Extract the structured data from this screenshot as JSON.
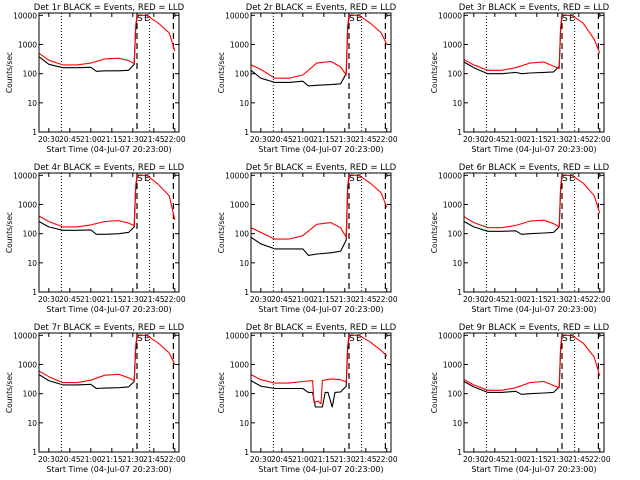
{
  "figure": {
    "colors": {
      "events": "#000000",
      "lld": "#ff0000",
      "axes": "#000000",
      "background": "#ffffff"
    },
    "shared_axes": {
      "ylabel": "Counts/sec",
      "xlabel": "Start Time (04-Jul-07 20:23:00)",
      "y_scale": "log",
      "ylim": [
        1,
        12000
      ],
      "yticks": [
        1,
        10,
        100,
        1000,
        10000
      ],
      "ytick_labels": [
        "1",
        "10",
        "100",
        "1000",
        "10000"
      ],
      "xlim": [
        "20:23",
        "22:03"
      ],
      "xticks": [
        "20:30",
        "20:45",
        "21:00",
        "21:15",
        "21:30",
        "21:45",
        "22:00"
      ],
      "xtick_labels": [
        "20:30",
        "20:45",
        "21:00",
        "21:15",
        "21:30",
        "21:45",
        "22:00"
      ],
      "dotted_lines_at": [
        "20:39",
        "21:42"
      ],
      "dashed_lines_at": [
        "21:33",
        "21:59"
      ],
      "markers": [
        {
          "label": "S",
          "at": "21:35"
        },
        {
          "label": "E",
          "at": "21:40"
        }
      ]
    }
  },
  "chart_data": [
    {
      "type": "line",
      "title": "Det 1r BLACK = Events, RED = LLD",
      "series": [
        {
          "name": "Events",
          "color": "#000000",
          "x": [
            "20:23",
            "20:30",
            "20:40",
            "20:50",
            "21:00",
            "21:04",
            "21:10",
            "21:20",
            "21:27",
            "21:31",
            "21:32",
            "21:33",
            "21:34"
          ],
          "y": [
            380,
            210,
            160,
            160,
            165,
            120,
            125,
            125,
            130,
            210,
            3000,
            10000,
            10000
          ]
        },
        {
          "name": "LLD",
          "color": "#ff0000",
          "x": [
            "20:23",
            "20:30",
            "20:40",
            "20:50",
            "21:00",
            "21:10",
            "21:20",
            "21:27",
            "21:31",
            "21:32",
            "21:33",
            "21:34",
            "21:40",
            "21:48",
            "21:56",
            "22:00"
          ],
          "y": [
            500,
            290,
            200,
            200,
            230,
            320,
            340,
            280,
            220,
            4000,
            10000,
            10000,
            10000,
            5500,
            2500,
            600
          ]
        }
      ]
    },
    {
      "type": "line",
      "title": "Det 2r BLACK = Events, RED = LLD",
      "series": [
        {
          "name": "Events",
          "color": "#000000",
          "x": [
            "20:23",
            "20:30",
            "20:40",
            "20:50",
            "21:00",
            "21:04",
            "21:10",
            "21:20",
            "21:27",
            "21:31",
            "21:32",
            "21:33",
            "21:34"
          ],
          "y": [
            130,
            70,
            50,
            50,
            55,
            38,
            40,
            42,
            45,
            100,
            3000,
            10000,
            10000
          ]
        },
        {
          "name": "LLD",
          "color": "#ff0000",
          "x": [
            "20:23",
            "20:30",
            "20:40",
            "20:50",
            "21:00",
            "21:10",
            "21:20",
            "21:27",
            "21:31",
            "21:32",
            "21:33",
            "21:34",
            "21:40",
            "21:48",
            "21:56",
            "22:00"
          ],
          "y": [
            200,
            140,
            70,
            70,
            90,
            230,
            260,
            170,
            90,
            4000,
            10000,
            10000,
            10000,
            5500,
            2500,
            1000
          ]
        }
      ]
    },
    {
      "type": "line",
      "title": "Det 3r BLACK = Events, RED = LLD",
      "series": [
        {
          "name": "Events",
          "color": "#000000",
          "x": [
            "20:23",
            "20:30",
            "20:40",
            "20:50",
            "21:00",
            "21:04",
            "21:10",
            "21:20",
            "21:27",
            "21:31",
            "21:32",
            "21:33",
            "21:34"
          ],
          "y": [
            250,
            160,
            100,
            100,
            110,
            100,
            105,
            110,
            115,
            180,
            3000,
            10000,
            10000
          ]
        },
        {
          "name": "LLD",
          "color": "#ff0000",
          "x": [
            "20:23",
            "20:30",
            "20:40",
            "20:50",
            "21:00",
            "21:10",
            "21:20",
            "21:27",
            "21:31",
            "21:32",
            "21:33",
            "21:34",
            "21:40",
            "21:48",
            "21:56",
            "22:00"
          ],
          "y": [
            300,
            200,
            130,
            130,
            160,
            230,
            250,
            180,
            150,
            4000,
            10000,
            10000,
            10000,
            5500,
            1500,
            500
          ]
        }
      ]
    },
    {
      "type": "line",
      "title": "Det 4r BLACK = Events, RED = LLD",
      "series": [
        {
          "name": "Events",
          "color": "#000000",
          "x": [
            "20:23",
            "20:30",
            "20:40",
            "20:50",
            "21:00",
            "21:04",
            "21:10",
            "21:20",
            "21:27",
            "21:31",
            "21:32",
            "21:33",
            "21:34"
          ],
          "y": [
            260,
            170,
            130,
            130,
            135,
            95,
            95,
            100,
            110,
            170,
            3000,
            10000,
            10000
          ]
        },
        {
          "name": "LLD",
          "color": "#ff0000",
          "x": [
            "20:23",
            "20:30",
            "20:40",
            "20:50",
            "21:00",
            "21:10",
            "21:20",
            "21:27",
            "21:31",
            "21:32",
            "21:33",
            "21:34",
            "21:40",
            "21:48",
            "21:56",
            "22:00"
          ],
          "y": [
            400,
            260,
            170,
            170,
            200,
            260,
            280,
            230,
            190,
            4000,
            10000,
            10000,
            10000,
            5000,
            2000,
            300
          ]
        }
      ]
    },
    {
      "type": "line",
      "title": "Det 5r BLACK = Events, RED = LLD",
      "series": [
        {
          "name": "Events",
          "color": "#000000",
          "x": [
            "20:23",
            "20:30",
            "20:40",
            "20:50",
            "21:00",
            "21:04",
            "21:10",
            "21:20",
            "21:27",
            "21:31",
            "21:32",
            "21:33",
            "21:34"
          ],
          "y": [
            75,
            45,
            30,
            30,
            30,
            18,
            20,
            22,
            25,
            60,
            3000,
            10000,
            10000
          ]
        },
        {
          "name": "LLD",
          "color": "#ff0000",
          "x": [
            "20:23",
            "20:30",
            "20:40",
            "20:50",
            "21:00",
            "21:10",
            "21:20",
            "21:27",
            "21:31",
            "21:32",
            "21:33",
            "21:34",
            "21:40",
            "21:48",
            "21:56",
            "22:00"
          ],
          "y": [
            160,
            110,
            65,
            65,
            85,
            210,
            240,
            160,
            75,
            4000,
            10000,
            10000,
            10000,
            5500,
            2500,
            800
          ]
        }
      ]
    },
    {
      "type": "line",
      "title": "Det 6r BLACK = Events, RED = LLD",
      "series": [
        {
          "name": "Events",
          "color": "#000000",
          "x": [
            "20:23",
            "20:30",
            "20:40",
            "20:50",
            "21:00",
            "21:04",
            "21:10",
            "21:20",
            "21:27",
            "21:31",
            "21:32",
            "21:33",
            "21:34"
          ],
          "y": [
            260,
            170,
            120,
            120,
            125,
            95,
            100,
            105,
            110,
            170,
            3000,
            10000,
            10000
          ]
        },
        {
          "name": "LLD",
          "color": "#ff0000",
          "x": [
            "20:23",
            "20:30",
            "20:40",
            "20:50",
            "21:00",
            "21:10",
            "21:20",
            "21:27",
            "21:31",
            "21:32",
            "21:33",
            "21:34",
            "21:40",
            "21:48",
            "21:56",
            "22:00"
          ],
          "y": [
            380,
            240,
            160,
            160,
            190,
            270,
            290,
            220,
            170,
            4000,
            10000,
            10000,
            10000,
            5500,
            2000,
            500
          ]
        }
      ]
    },
    {
      "type": "line",
      "title": "Det 7r BLACK = Events, RED = LLD",
      "series": [
        {
          "name": "Events",
          "color": "#000000",
          "x": [
            "20:23",
            "20:30",
            "20:40",
            "20:50",
            "21:00",
            "21:04",
            "21:10",
            "21:20",
            "21:27",
            "21:31",
            "21:32",
            "21:33",
            "21:34"
          ],
          "y": [
            450,
            280,
            200,
            200,
            210,
            150,
            155,
            160,
            170,
            260,
            3000,
            10000,
            10000
          ]
        },
        {
          "name": "LLD",
          "color": "#ff0000",
          "x": [
            "20:23",
            "20:30",
            "20:40",
            "20:50",
            "21:00",
            "21:10",
            "21:20",
            "21:27",
            "21:31",
            "21:32",
            "21:33",
            "21:34",
            "21:40",
            "21:48",
            "21:56",
            "22:00"
          ],
          "y": [
            600,
            380,
            240,
            240,
            290,
            430,
            460,
            350,
            280,
            4000,
            10000,
            10000,
            10000,
            5500,
            2500,
            1000
          ]
        }
      ]
    },
    {
      "type": "line",
      "title": "Det 8r BLACK = Events, RED = LLD",
      "series": [
        {
          "name": "Events",
          "color": "#000000",
          "x": [
            "20:23",
            "20:30",
            "20:40",
            "20:50",
            "21:00",
            "21:04",
            "21:07",
            "21:09",
            "21:14",
            "21:16",
            "21:18",
            "21:21",
            "21:23",
            "21:27",
            "21:31",
            "21:32",
            "21:33",
            "21:34"
          ],
          "y": [
            280,
            180,
            150,
            150,
            150,
            110,
            110,
            35,
            35,
            110,
            110,
            35,
            110,
            115,
            180,
            3000,
            10000,
            10000
          ]
        },
        {
          "name": "LLD",
          "color": "#ff0000",
          "x": [
            "20:23",
            "20:30",
            "20:40",
            "20:50",
            "21:00",
            "21:07",
            "21:08",
            "21:11",
            "21:13",
            "21:14",
            "21:20",
            "21:27",
            "21:31",
            "21:32",
            "21:33",
            "21:34",
            "21:40",
            "21:48",
            "21:56",
            "22:00"
          ],
          "y": [
            450,
            300,
            230,
            230,
            260,
            280,
            50,
            55,
            45,
            280,
            320,
            300,
            250,
            4000,
            10000,
            10000,
            10000,
            6000,
            3000,
            2000
          ]
        }
      ]
    },
    {
      "type": "line",
      "title": "Det 9r BLACK = Events, RED = LLD",
      "series": [
        {
          "name": "Events",
          "color": "#000000",
          "x": [
            "20:23",
            "20:30",
            "20:40",
            "20:50",
            "21:00",
            "21:04",
            "21:10",
            "21:20",
            "21:27",
            "21:31",
            "21:32",
            "21:33",
            "21:34"
          ],
          "y": [
            260,
            170,
            110,
            110,
            120,
            95,
            100,
            105,
            110,
            170,
            3000,
            10000,
            10000
          ]
        },
        {
          "name": "LLD",
          "color": "#ff0000",
          "x": [
            "20:23",
            "20:30",
            "20:40",
            "20:50",
            "21:00",
            "21:10",
            "21:20",
            "21:27",
            "21:31",
            "21:32",
            "21:33",
            "21:34",
            "21:40",
            "21:48",
            "21:56",
            "22:00"
          ],
          "y": [
            300,
            200,
            130,
            130,
            160,
            240,
            260,
            190,
            160,
            4000,
            10000,
            10000,
            10000,
            5500,
            1800,
            400
          ]
        }
      ]
    }
  ]
}
